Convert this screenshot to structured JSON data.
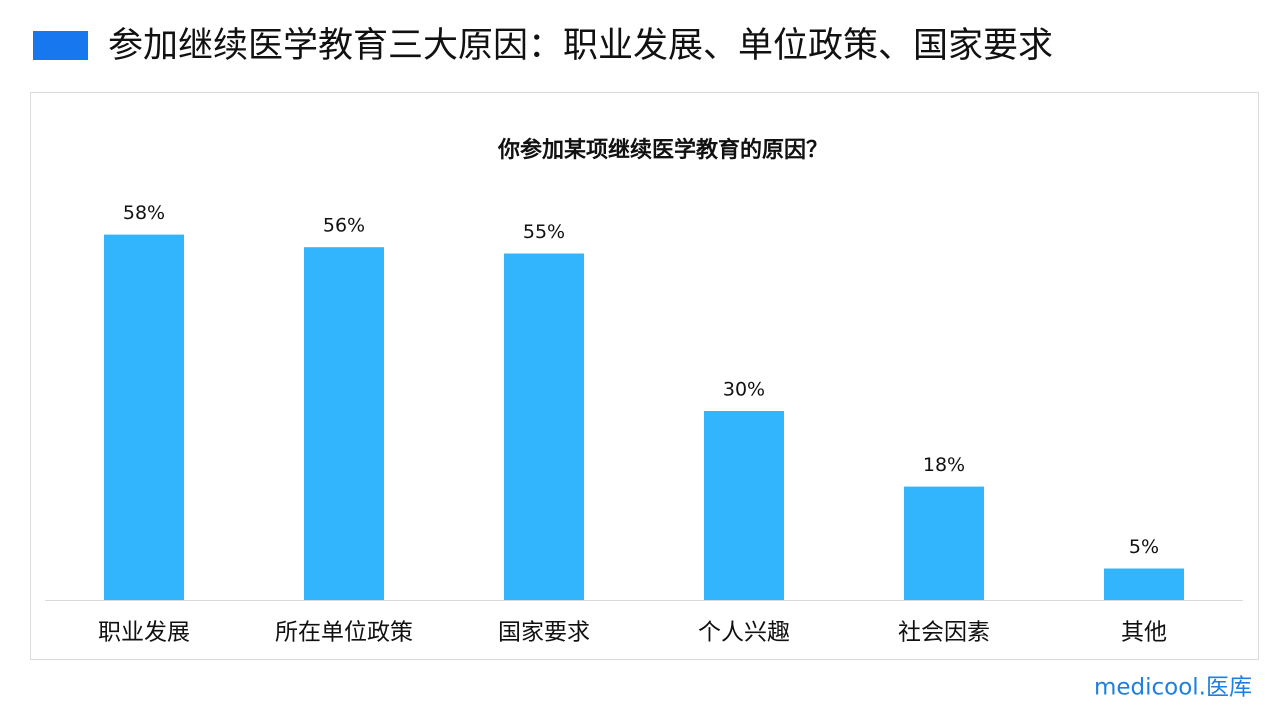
{
  "header": {
    "title": "参加继续医学教育三大原因：职业发展、单位政策、国家要求"
  },
  "chart_data": {
    "type": "bar",
    "title": "你参加某项继续医学教育的原因？",
    "categories": [
      "职业发展",
      "所在单位政策",
      "国家要求",
      "个人兴趣",
      "社会因素",
      "其他"
    ],
    "values": [
      58,
      56,
      55,
      30,
      18,
      5
    ],
    "value_labels": [
      "58%",
      "56%",
      "55%",
      "30%",
      "18%",
      "5%"
    ],
    "color": "#33b5fd"
  },
  "logo": "medicool.医库"
}
